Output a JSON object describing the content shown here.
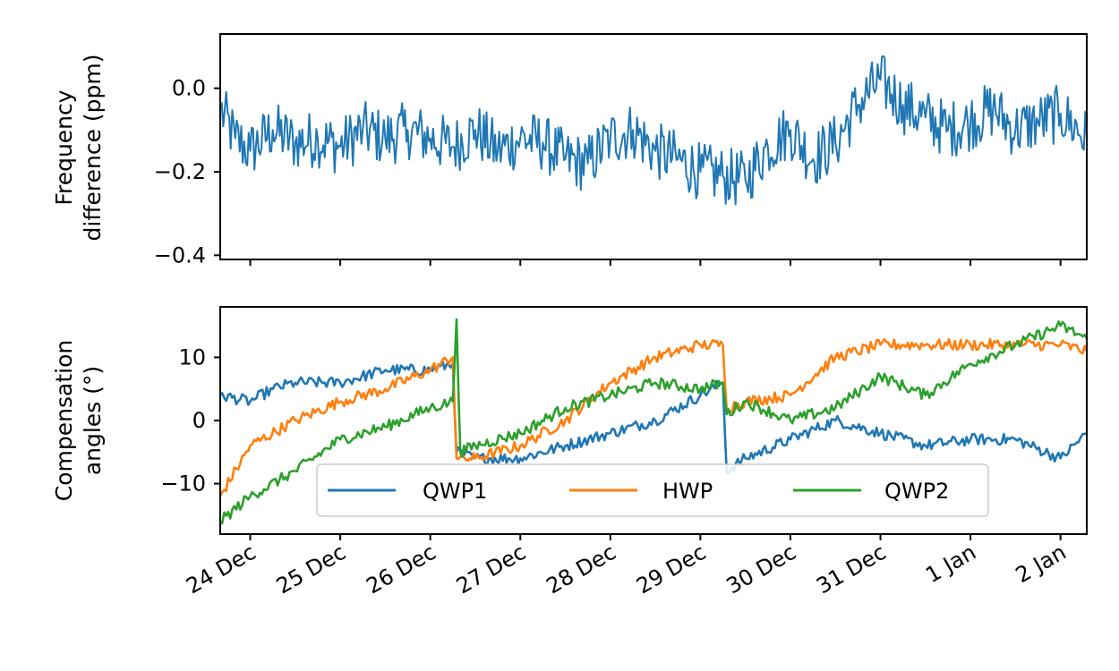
{
  "chart_data": [
    {
      "type": "line",
      "ylabel": [
        "Frequency",
        "difference (ppm)"
      ],
      "xlim": [
        "2023-12-23 16:00",
        "2024-01-02 07:00"
      ],
      "ylim": [
        -0.41,
        0.13
      ],
      "yticks": [
        0.0,
        -0.2,
        -0.4
      ],
      "ytick_labels": [
        "0.0",
        "−0.2",
        "−0.4"
      ],
      "xtick_labels_visible": false,
      "colors": {
        "series": "#1f77b4"
      },
      "series": [
        {
          "x": [
            "2023-12-23 16:00",
            "2023-12-23 20:00",
            "2023-12-24 00:00",
            "2023-12-24 06:00",
            "2023-12-24 12:00",
            "2023-12-24 18:00",
            "2023-12-25 00:00",
            "2023-12-25 06:00",
            "2023-12-25 12:00",
            "2023-12-25 18:00",
            "2023-12-26 00:00",
            "2023-12-26 06:00",
            "2023-12-26 12:00",
            "2023-12-26 18:00",
            "2023-12-27 00:00",
            "2023-12-27 06:00",
            "2023-12-27 12:00",
            "2023-12-27 18:00",
            "2023-12-28 00:00",
            "2023-12-28 06:00",
            "2023-12-28 12:00",
            "2023-12-28 18:00",
            "2023-12-29 00:00",
            "2023-12-29 06:00",
            "2023-12-29 12:00",
            "2023-12-29 18:00",
            "2023-12-30 00:00",
            "2023-12-30 06:00",
            "2023-12-30 12:00",
            "2023-12-30 18:00",
            "2023-12-31 00:00",
            "2023-12-31 06:00",
            "2023-12-31 12:00",
            "2023-12-31 18:00",
            "2024-01-01 00:00",
            "2024-01-01 06:00",
            "2024-01-01 12:00",
            "2024-01-01 18:00",
            "2024-01-02 00:00",
            "2024-01-02 07:00"
          ],
          "values": [
            -0.05,
            -0.12,
            -0.15,
            -0.1,
            -0.13,
            -0.12,
            -0.14,
            -0.1,
            -0.12,
            -0.1,
            -0.12,
            -0.14,
            -0.1,
            -0.15,
            -0.12,
            -0.13,
            -0.17,
            -0.18,
            -0.12,
            -0.1,
            -0.15,
            -0.17,
            -0.2,
            -0.21,
            -0.22,
            -0.14,
            -0.1,
            -0.17,
            -0.13,
            -0.04,
            0.02,
            -0.04,
            -0.07,
            -0.1,
            -0.08,
            -0.05,
            -0.1,
            -0.08,
            -0.06,
            -0.12
          ]
        }
      ]
    },
    {
      "type": "line",
      "ylabel": [
        "Compensation",
        "angles (°)"
      ],
      "xlim": [
        "2023-12-23 16:00",
        "2024-01-02 07:00"
      ],
      "ylim": [
        -18,
        18
      ],
      "yticks": [
        10,
        0,
        -10
      ],
      "ytick_labels": [
        "10",
        "0",
        "−10"
      ],
      "xtick_labels": [
        "24 Dec",
        "25 Dec",
        "26 Dec",
        "27 Dec",
        "28 Dec",
        "29 Dec",
        "30 Dec",
        "31 Dec",
        "1 Jan",
        "2 Jan"
      ],
      "xtick_dates": [
        "2023-12-24",
        "2023-12-25",
        "2023-12-26",
        "2023-12-27",
        "2023-12-28",
        "2023-12-29",
        "2023-12-30",
        "2023-12-31",
        "2024-01-01",
        "2024-01-02"
      ],
      "legend": {
        "placement": "lower-center",
        "columns": 3
      },
      "series": [
        {
          "name": "QWP1",
          "color": "#1f77b4",
          "x": [
            "2023-12-23 16:00",
            "2023-12-24 00:00",
            "2023-12-24 06:00",
            "2023-12-24 12:00",
            "2023-12-25 00:00",
            "2023-12-25 12:00",
            "2023-12-26 00:00",
            "2023-12-26 06:00",
            "2023-12-26 07:00",
            "2023-12-26 12:00",
            "2023-12-27 00:00",
            "2023-12-27 12:00",
            "2023-12-28 00:00",
            "2023-12-28 12:00",
            "2023-12-29 00:00",
            "2023-12-29 06:00",
            "2023-12-29 07:00",
            "2023-12-29 12:00",
            "2023-12-30 00:00",
            "2023-12-30 12:00",
            "2023-12-31 00:00",
            "2023-12-31 12:00",
            "2024-01-01 00:00",
            "2024-01-01 12:00",
            "2024-01-02 00:00",
            "2024-01-02 07:00"
          ],
          "values": [
            4,
            3,
            5,
            6,
            6,
            8,
            8,
            9,
            -5,
            -6,
            -6,
            -4,
            -2,
            0,
            4,
            6,
            -8,
            -6,
            -3,
            0,
            -2,
            -4,
            -3,
            -3,
            -6,
            -2
          ]
        },
        {
          "name": "HWP",
          "color": "#ff7f0e",
          "x": [
            "2023-12-23 16:00",
            "2023-12-24 00:00",
            "2023-12-24 12:00",
            "2023-12-25 00:00",
            "2023-12-25 12:00",
            "2023-12-26 00:00",
            "2023-12-26 06:00",
            "2023-12-26 07:00",
            "2023-12-26 12:00",
            "2023-12-27 00:00",
            "2023-12-27 12:00",
            "2023-12-28 00:00",
            "2023-12-28 12:00",
            "2023-12-29 00:00",
            "2023-12-29 06:00",
            "2023-12-29 07:00",
            "2023-12-29 12:00",
            "2023-12-30 00:00",
            "2023-12-30 12:00",
            "2023-12-31 00:00",
            "2023-12-31 12:00",
            "2024-01-01 00:00",
            "2024-01-01 12:00",
            "2024-01-02 00:00",
            "2024-01-02 07:00"
          ],
          "values": [
            -12,
            -4,
            0,
            3,
            5,
            8,
            10,
            -6,
            -6,
            -4,
            0,
            6,
            10,
            12,
            12,
            2,
            3,
            4,
            10,
            12,
            12,
            12,
            12,
            12,
            11
          ]
        },
        {
          "name": "QWP2",
          "color": "#2ca02c",
          "x": [
            "2023-12-23 16:00",
            "2023-12-24 00:00",
            "2023-12-24 12:00",
            "2023-12-25 00:00",
            "2023-12-25 12:00",
            "2023-12-26 00:00",
            "2023-12-26 06:00",
            "2023-12-26 07:00",
            "2023-12-26 08:00",
            "2023-12-26 12:00",
            "2023-12-27 00:00",
            "2023-12-27 12:00",
            "2023-12-28 00:00",
            "2023-12-28 12:00",
            "2023-12-29 00:00",
            "2023-12-29 06:00",
            "2023-12-29 07:00",
            "2023-12-29 12:00",
            "2023-12-30 00:00",
            "2023-12-30 12:00",
            "2023-12-31 00:00",
            "2023-12-31 12:00",
            "2024-01-01 00:00",
            "2024-01-01 12:00",
            "2024-01-02 00:00",
            "2024-01-02 07:00"
          ],
          "values": [
            -16,
            -12,
            -8,
            -3,
            -1,
            2,
            3,
            16,
            -5,
            -4,
            -2,
            2,
            4,
            6,
            5,
            6,
            1,
            3,
            0,
            2,
            7,
            4,
            9,
            12,
            15,
            13
          ]
        }
      ]
    }
  ]
}
